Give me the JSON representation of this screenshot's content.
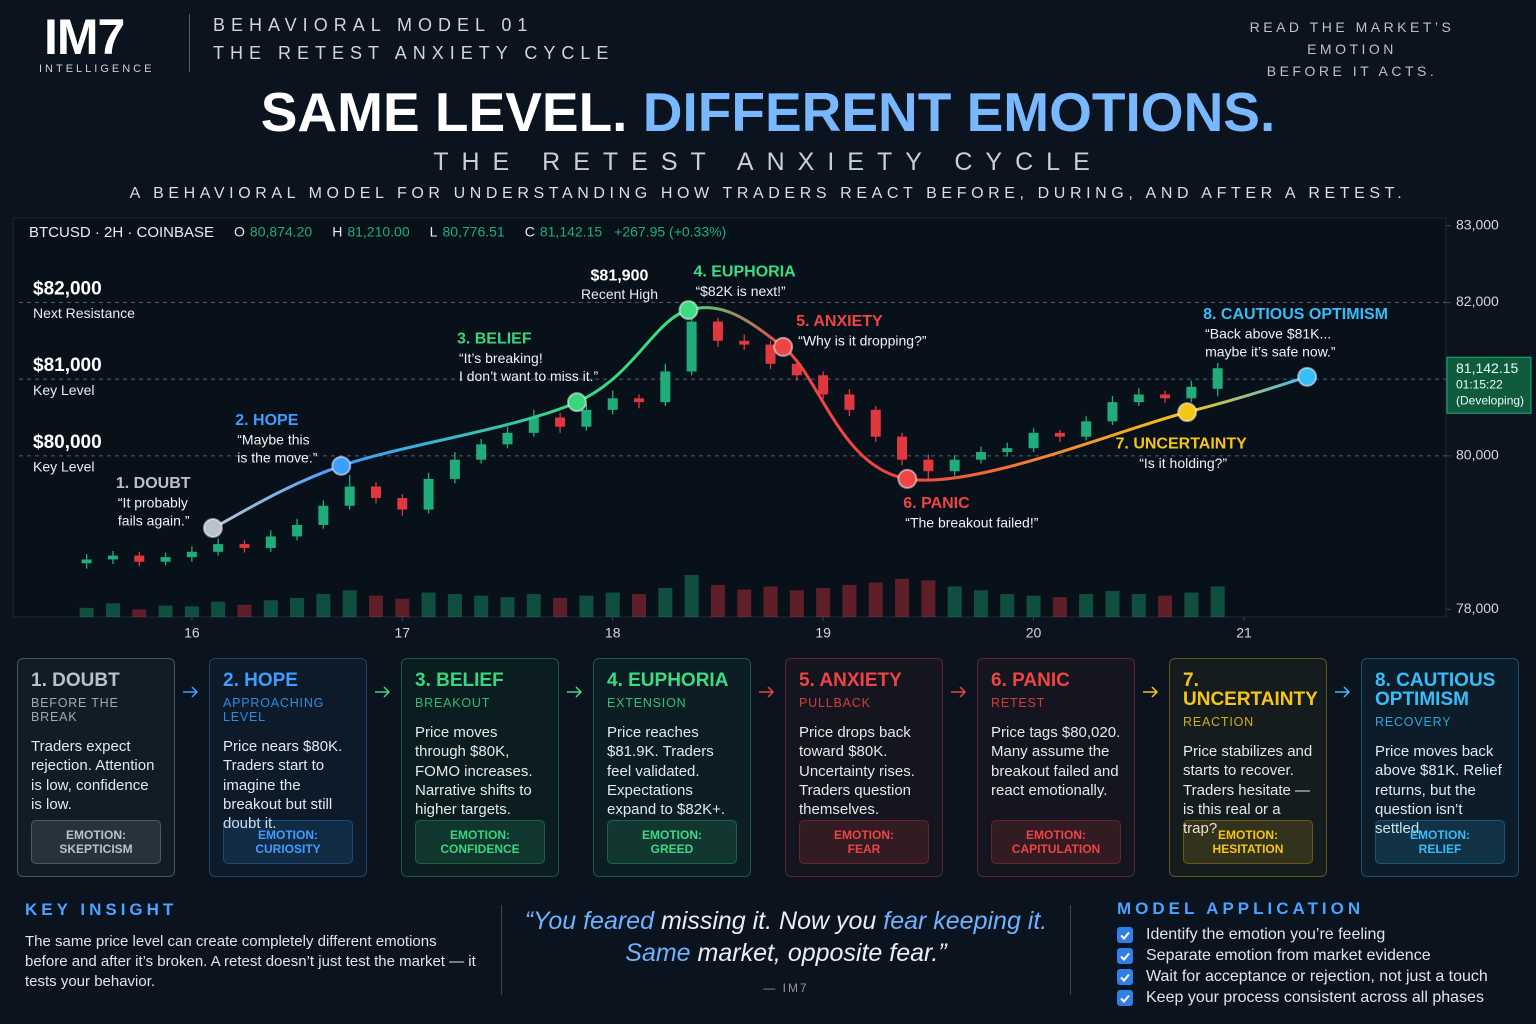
{
  "header": {
    "logo": "IM7",
    "logo_sub": "INTELLIGENCE",
    "kicker": "BEHAVIORAL MODEL 01",
    "kicker_sub": "THE RETEST ANXIETY CYCLE",
    "tagline": [
      "READ THE MARKET’S EMOTION",
      "BEFORE IT ACTS."
    ],
    "title_a": "SAME LEVEL.",
    "title_b": "DIFFERENT EMOTIONS.",
    "subtitle": "THE RETEST ANXIETY CYCLE",
    "description": "A BEHAVIORAL MODEL FOR UNDERSTANDING HOW TRADERS REACT BEFORE, DURING, AND AFTER A RETEST."
  },
  "chart_data": {
    "type": "candlestick",
    "ticker": "BTCUSD · 2H · COINBASE",
    "ohlc": [
      [
        "O",
        "80,874.20"
      ],
      [
        "H",
        "81,210.00"
      ],
      [
        "L",
        "80,776.51"
      ],
      [
        "C",
        "81,142.15"
      ]
    ],
    "change": "+267.95 (+0.33%)",
    "x": [
      15.5,
      15.625,
      15.75,
      15.875,
      16,
      16.125,
      16.25,
      16.375,
      16.5,
      16.625,
      16.75,
      16.875,
      17,
      17.125,
      17.25,
      17.375,
      17.5,
      17.625,
      17.75,
      17.875,
      18,
      18.125,
      18.25,
      18.375,
      18.5,
      18.625,
      18.75,
      18.875,
      19,
      19.125,
      19.25,
      19.375,
      19.5,
      19.625,
      19.75,
      19.875,
      20,
      20.125,
      20.25,
      20.375,
      20.5,
      20.625,
      20.75,
      20.875
    ],
    "open": [
      78600,
      78650,
      78700,
      78620,
      78680,
      78750,
      78850,
      78800,
      78950,
      79100,
      79350,
      79600,
      79450,
      79300,
      79700,
      79950,
      80150,
      80300,
      80500,
      80380,
      80600,
      80750,
      80700,
      81100,
      81750,
      81500,
      81450,
      81200,
      81050,
      80800,
      80600,
      80250,
      79950,
      79800,
      79950,
      80050,
      80100,
      80300,
      80250,
      80450,
      80700,
      80800,
      80750,
      80874.2
    ],
    "high": [
      78720,
      78760,
      78750,
      78740,
      78820,
      78920,
      78900,
      79030,
      79180,
      79420,
      79750,
      79660,
      79500,
      79780,
      80050,
      80220,
      80380,
      80600,
      80560,
      80680,
      80850,
      80800,
      81200,
      81900,
      81800,
      81580,
      81500,
      81260,
      81100,
      80870,
      80650,
      80300,
      80020,
      80010,
      80120,
      80170,
      80360,
      80340,
      80520,
      80780,
      80880,
      80850,
      80980,
      81210
    ],
    "low": [
      78530,
      78590,
      78560,
      78570,
      78620,
      78700,
      78740,
      78750,
      78900,
      79050,
      79300,
      79380,
      79220,
      79250,
      79640,
      79900,
      80100,
      80250,
      80300,
      80330,
      80540,
      80620,
      80650,
      81050,
      81420,
      81380,
      81130,
      80980,
      80740,
      80520,
      80180,
      79880,
      79700,
      79740,
      79900,
      79990,
      80050,
      80180,
      80200,
      80400,
      80650,
      80690,
      80700,
      80776.51
    ],
    "close": [
      78650,
      78700,
      78620,
      78680,
      78750,
      78850,
      78800,
      78950,
      79100,
      79350,
      79600,
      79450,
      79300,
      79700,
      79950,
      80150,
      80300,
      80500,
      80380,
      80600,
      80750,
      80700,
      81100,
      81750,
      81500,
      81450,
      81200,
      81050,
      80800,
      80600,
      80250,
      79950,
      79800,
      79950,
      80050,
      80100,
      80300,
      80250,
      80450,
      80700,
      80800,
      80750,
      80900,
      81142.15
    ],
    "volume": [
      12,
      18,
      10,
      15,
      14,
      20,
      16,
      22,
      25,
      30,
      35,
      28,
      24,
      32,
      30,
      28,
      26,
      30,
      25,
      28,
      32,
      30,
      38,
      55,
      42,
      36,
      40,
      35,
      38,
      42,
      45,
      50,
      48,
      40,
      35,
      30,
      28,
      26,
      30,
      34,
      30,
      28,
      32,
      40
    ],
    "up_color": "#1fae7a",
    "down_color": "#e0383e",
    "xlim": [
      15.15,
      21.96
    ],
    "xticks": [
      16,
      17,
      18,
      19,
      20,
      21
    ],
    "ylim": [
      77900,
      83100
    ],
    "yticks": [
      {
        "value": 83000,
        "label": "83,000"
      },
      {
        "value": 82000,
        "label": "82,000"
      },
      {
        "value": 80000,
        "label": "80,000"
      },
      {
        "value": 78000,
        "label": "78,000"
      }
    ],
    "price_tag": [
      "81,142.15",
      "01:15:22",
      "(Developing)"
    ],
    "levels": [
      {
        "value": 82000,
        "label": "$82,000",
        "note": "Next Resistance"
      },
      {
        "value": 81000,
        "label": "$81,000",
        "note": "Key Level"
      },
      {
        "value": 80000,
        "label": "$80,000",
        "note": "Key Level"
      }
    ],
    "recent_high": {
      "value": 81900,
      "label": "$81,900",
      "note": "Recent High"
    },
    "phases": [
      {
        "name": "1. DOUBT",
        "quote": [
          "“It probably",
          "fails again.”"
        ],
        "color": "#b9c2cc",
        "x": 16.1,
        "y": 79060
      },
      {
        "name": "2. HOPE",
        "quote": [
          "“Maybe this",
          "is the move.”"
        ],
        "color": "#3f9dff",
        "x": 16.71,
        "y": 79870
      },
      {
        "name": "3. BELIEF",
        "quote": [
          "“It’s breaking!",
          "I don’t want to miss it.”"
        ],
        "color": "#38d67f",
        "x": 17.83,
        "y": 80700
      },
      {
        "name": "4. EUPHORIA",
        "quote": [
          "“$82K is next!”"
        ],
        "color": "#3ddc84",
        "x": 18.36,
        "y": 81900
      },
      {
        "name": "5. ANXIETY",
        "quote": [
          "“Why is it dropping?”"
        ],
        "color": "#ef4444",
        "x": 18.81,
        "y": 81420
      },
      {
        "name": "6. PANIC",
        "quote": [
          "“The breakout failed!”"
        ],
        "color": "#ef4444",
        "x": 19.4,
        "y": 79700
      },
      {
        "name": "7. UNCERTAINTY",
        "quote": [
          "“Is it holding?”"
        ],
        "color": "#f5c518",
        "x": 20.73,
        "y": 80570
      },
      {
        "name": "8. CAUTIOUS OPTIMISM",
        "quote": [
          "“Back above $81K...",
          "maybe it’s safe now.”"
        ],
        "color": "#38bdf8",
        "x": 21.3,
        "y": 81030
      }
    ]
  },
  "cards": {
    "prefix": "EMOTION:",
    "items": [
      {
        "stage": "BEFORE THE BREAK",
        "body": "Traders expect rejection. Attention is low, confidence is low.",
        "emotion": "SKEPTICISM"
      },
      {
        "stage": "APPROACHING LEVEL",
        "body": "Price nears $80K. Traders start to imagine the breakout but still doubt it.",
        "emotion": "CURIOSITY"
      },
      {
        "stage": "BREAKOUT",
        "body": "Price moves through $80K, FOMO increases. Narrative shifts to higher targets.",
        "emotion": "CONFIDENCE"
      },
      {
        "stage": "EXTENSION",
        "body": "Price reaches $81.9K. Traders feel validated. Expectations expand to $82K+.",
        "emotion": "GREED"
      },
      {
        "stage": "PULLBACK",
        "body": "Price drops back toward $80K. Uncertainty rises. Traders question themselves.",
        "emotion": "FEAR"
      },
      {
        "stage": "RETEST",
        "body": "Price tags $80,020. Many assume the breakout failed and react emotionally.",
        "emotion": "CAPITULATION"
      },
      {
        "stage": "REACTION",
        "body": "Price stabilizes and starts to recover. Traders hesitate — is this real or a trap?",
        "emotion": "HESITATION"
      },
      {
        "stage": "RECOVERY",
        "body": "Price moves back above $81K. Relief returns, but the question isn’t settled.",
        "emotion": "RELIEF"
      }
    ]
  },
  "footer": {
    "insight_title": "KEY INSIGHT",
    "insight": "The same price level can create completely different emotions before and after it’s broken. A retest doesn’t just test the market — it tests your behavior.",
    "quote": [
      [
        [
          "“You feared",
          true
        ],
        [
          " missing it. Now you ",
          false
        ],
        [
          "fear keeping it.",
          true
        ]
      ],
      [
        [
          "Same",
          true
        ],
        [
          " market, opposite fear.”",
          false
        ]
      ]
    ],
    "attribution": "— IM7",
    "application_title": "MODEL APPLICATION",
    "application": [
      "Identify the emotion you’re feeling",
      "Separate emotion from market evidence",
      "Wait for acceptance or rejection, not just a touch",
      "Keep your process consistent across all phases"
    ]
  }
}
